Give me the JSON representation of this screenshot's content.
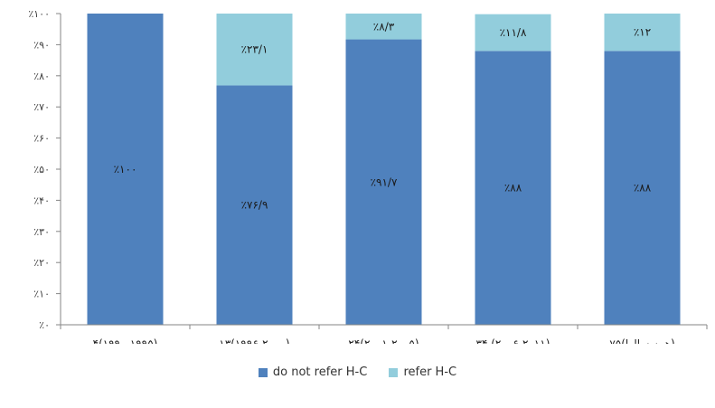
{
  "chart_data": {
    "type": "bar",
    "stacked": true,
    "ylim": [
      0,
      100
    ],
    "yticks": [
      0,
      10,
      20,
      30,
      40,
      50,
      60,
      70,
      80,
      90,
      100
    ],
    "ytick_labels": [
      "٪۰",
      "٪۱۰",
      "٪۲۰",
      "٪۳۰",
      "٪۴۰",
      "٪۵۰",
      "٪۶۰",
      "٪۷۰",
      "٪۸۰",
      "٪۹۰",
      "٪۱۰۰"
    ],
    "categories": [
      "(۱۹۹۰-۱۹۹۵)۴",
      "(۱۹۹۶-۲۰۰۰)۱۳",
      "(۲۰۰۱-۲۰۰۵)۲۴",
      "(۲۰۰۶-۲۰۱۱) ۳۴",
      "(همه سالها)۷۵"
    ],
    "series": [
      {
        "name": "do not refer H-C",
        "color": "#4F81BD",
        "values": [
          100,
          76.9,
          91.7,
          88,
          88
        ],
        "labels": [
          "٪۱۰۰",
          "٪۷۶/۹",
          "٪۹۱/۷",
          "٪۸۸",
          "٪۸۸"
        ]
      },
      {
        "name": "refer H-C",
        "color": "#92CDDC",
        "values": [
          0,
          23.1,
          8.3,
          11.8,
          12
        ],
        "labels": [
          "",
          "٪۲۳/۱",
          "٪۸/۳",
          "٪۱۱/۸",
          "٪۱۲"
        ]
      }
    ],
    "grid": false,
    "legend_position": "bottom"
  }
}
